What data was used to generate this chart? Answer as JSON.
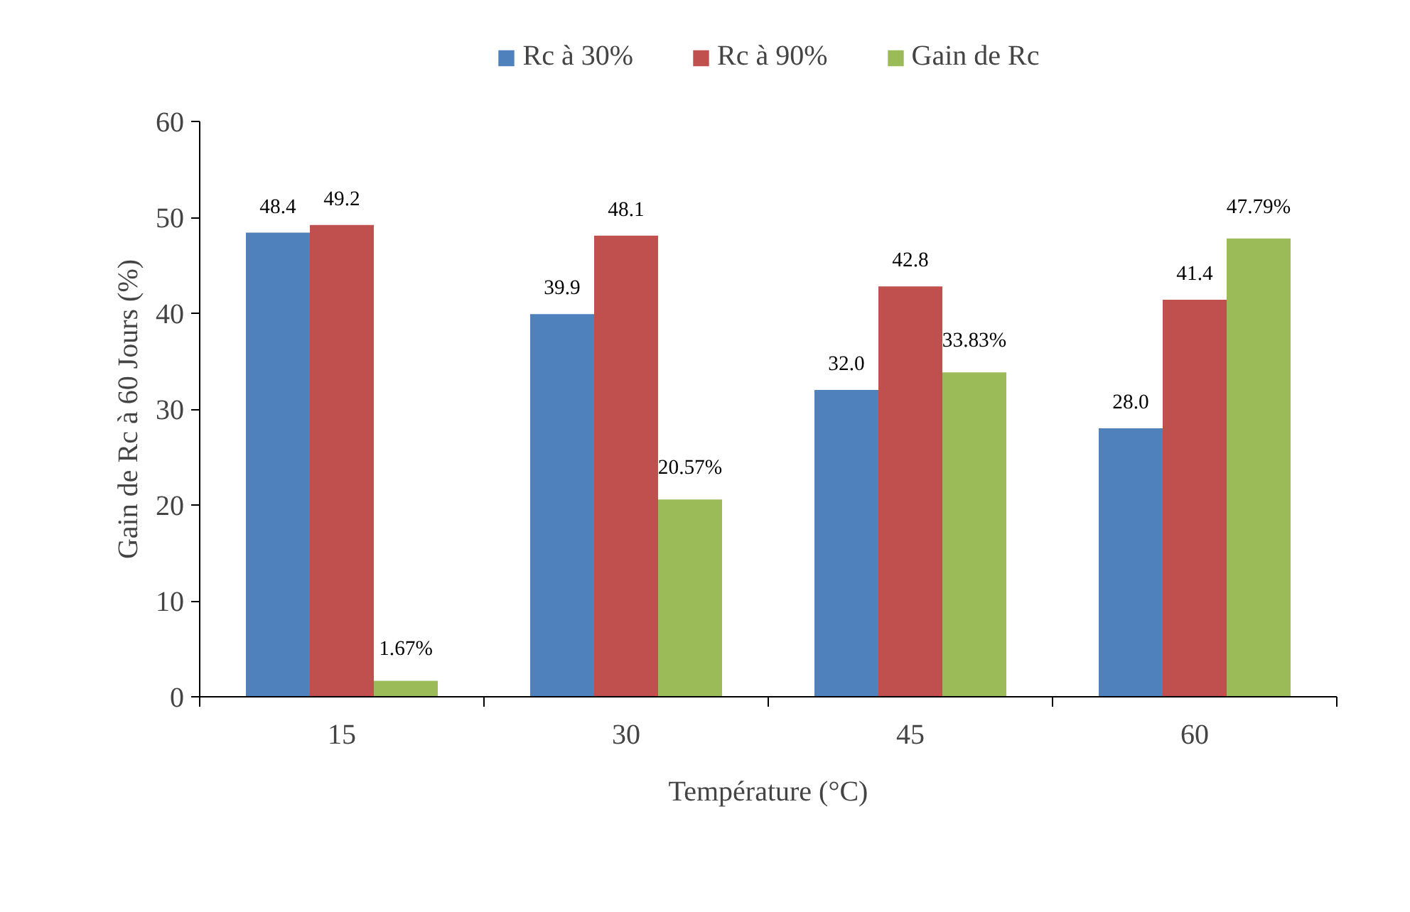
{
  "chart_data": {
    "type": "bar",
    "xlabel": "Température (°C)",
    "ylabel": "Gain de Rc à 60 Jours (%)",
    "categories": [
      "15",
      "30",
      "45",
      "60"
    ],
    "series": [
      {
        "name": "Rc à 30%",
        "color": "#4f81bd",
        "values": [
          48.4,
          39.9,
          32.0,
          28.0
        ],
        "value_labels": [
          "48.4",
          "39.9",
          "32.0",
          "28.0"
        ]
      },
      {
        "name": "Rc à 90%",
        "color": "#c0504d",
        "values": [
          49.2,
          48.1,
          42.8,
          41.4
        ],
        "value_labels": [
          "49.2",
          "48.1",
          "42.8",
          "41.4"
        ]
      },
      {
        "name": "Gain de Rc",
        "color": "#9bbb59",
        "values": [
          1.67,
          20.57,
          33.83,
          47.79
        ],
        "value_labels": [
          "1.67%",
          "20.57%",
          "33.83%",
          "47.79%"
        ]
      }
    ],
    "ylim": [
      0,
      60
    ],
    "yticks": [
      0,
      10,
      20,
      30,
      40,
      50,
      60
    ],
    "grid": false,
    "legend": "top"
  }
}
